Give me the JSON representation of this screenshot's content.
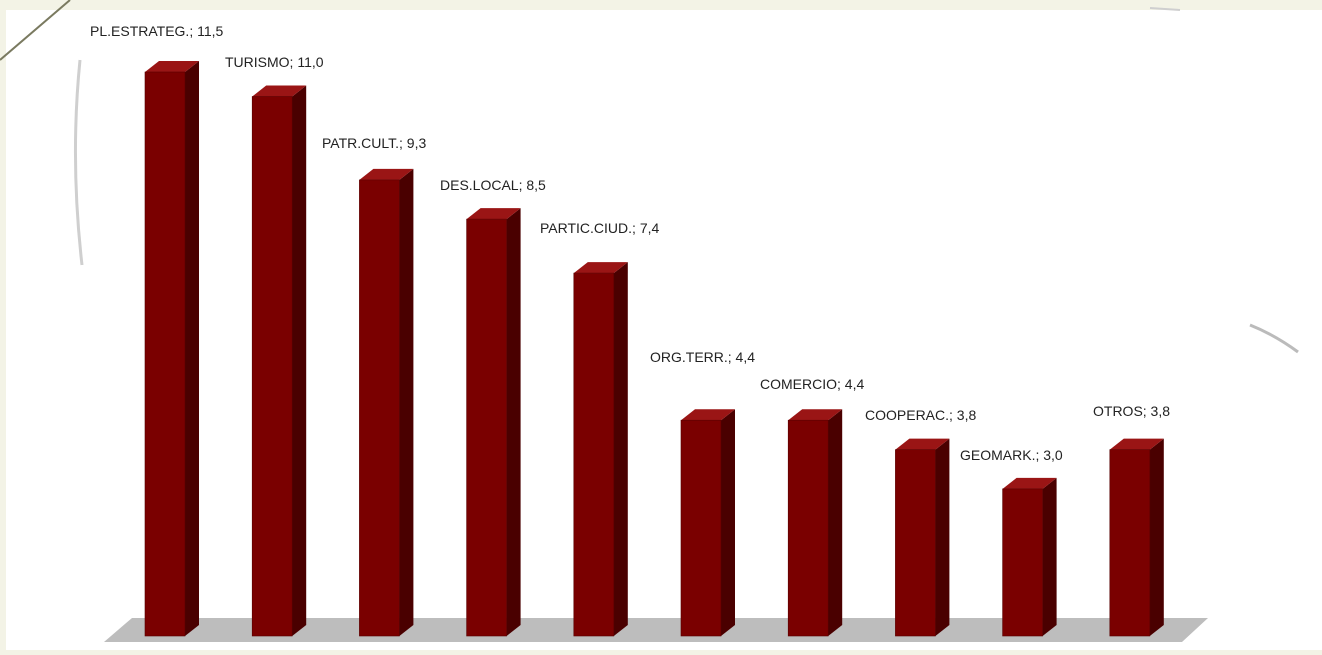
{
  "chart_data": {
    "type": "bar",
    "categories": [
      "PL.ESTRATEG.",
      "TURISMO",
      "PATR.CULT.",
      "DES.LOCAL",
      "PARTIC.CIUD.",
      "ORG.TERR.",
      "COMERCIO",
      "COOPERAC.",
      "GEOMARK.",
      "OTROS"
    ],
    "values": [
      11.5,
      11.0,
      9.3,
      8.5,
      7.4,
      4.4,
      4.4,
      3.8,
      3.0,
      3.8
    ],
    "data_labels": [
      "PL.ESTRATEG.; 11,5",
      "TURISMO; 11,0",
      "PATR.CULT.; 9,3",
      "DES.LOCAL; 8,5",
      "PARTIC.CIUD.; 7,4",
      "ORG.TERR.; 4,4",
      "COMERCIO; 4,4",
      "COOPERAC.; 3,8",
      "GEOMARK.; 3,0",
      "OTROS; 3,8"
    ],
    "title": "",
    "xlabel": "",
    "ylabel": "",
    "ylim": [
      0,
      11.5
    ],
    "grid": false,
    "style": "3d-columns"
  },
  "colors": {
    "page_background": "#f3f3e6",
    "plot_background": "#ffffff",
    "bar_front": "#7a0000",
    "bar_top": "#9a1515",
    "bar_side": "#4a0000",
    "floor": "#bdbdbd",
    "label_text": "#222222"
  }
}
